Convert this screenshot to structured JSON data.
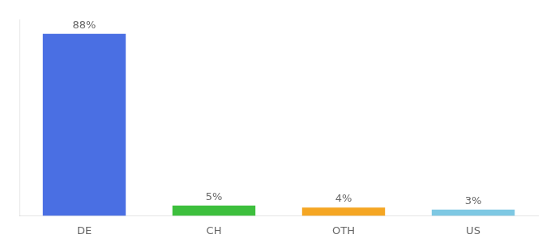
{
  "chart_data": {
    "type": "bar",
    "categories": [
      "DE",
      "CH",
      "OTH",
      "US"
    ],
    "values": [
      88,
      5,
      4,
      3
    ],
    "value_labels": [
      "88%",
      "5%",
      "4%",
      "3%"
    ],
    "colors": [
      "#4A6FE3",
      "#3DBF3D",
      "#F5A623",
      "#7EC8E3"
    ],
    "ylim": [
      0,
      95
    ],
    "grid": false,
    "data_labels": true,
    "tick_labels": "x"
  }
}
